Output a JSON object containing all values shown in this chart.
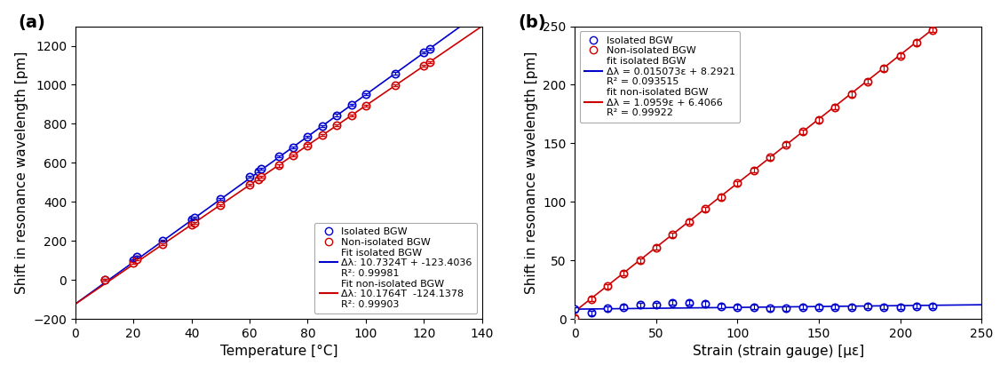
{
  "panel_a": {
    "title": "(a)",
    "xlabel": "Temperature [°C]",
    "ylabel": "Shift in resonance wavelength [pm]",
    "xlim": [
      0,
      140
    ],
    "ylim": [
      -200,
      1300
    ],
    "xticks": [
      0,
      20,
      40,
      60,
      80,
      100,
      120,
      140
    ],
    "yticks": [
      -200,
      0,
      200,
      400,
      600,
      800,
      1000,
      1200
    ],
    "isolated_x": [
      10,
      20,
      21,
      30,
      40,
      41,
      50,
      60,
      63,
      64,
      70,
      75,
      80,
      85,
      90,
      95,
      100,
      110,
      120,
      122
    ],
    "isolated_y": [
      0,
      102,
      118,
      200,
      310,
      320,
      415,
      527,
      558,
      568,
      633,
      680,
      734,
      788,
      845,
      899,
      952,
      1059,
      1166,
      1185
    ],
    "nonisolated_x": [
      10,
      20,
      21,
      30,
      40,
      41,
      50,
      60,
      63,
      64,
      70,
      75,
      80,
      85,
      90,
      95,
      100,
      110,
      120,
      122
    ],
    "nonisolated_y": [
      0,
      88,
      105,
      181,
      283,
      293,
      384,
      487,
      517,
      527,
      586,
      638,
      690,
      742,
      792,
      843,
      894,
      996,
      1097,
      1117
    ],
    "fit_isolated_slope": 10.7324,
    "fit_isolated_intercept": -123.4036,
    "fit_isolated_r2": "0.99981",
    "fit_nonisolated_slope": 10.1764,
    "fit_nonisolated_intercept": -124.1378,
    "fit_nonisolated_r2": "0.99903",
    "legend_isolated": "Isolated BGW",
    "legend_nonisolated": "Non-isolated BGW",
    "legend_fit_isolated": "Fit isolated BGW",
    "legend_fit_nonisolated": "Fit non-isolated BGW",
    "fit_label_isolated": "Δλ: 10.7324T + -123.4036",
    "fit_label_nonisolated": "Δλ: 10.1764T  -124.1378",
    "r2_label_isolated": "R²: 0.99981",
    "r2_label_nonisolated": "R²: 0.99903",
    "color_isolated": "#0000cc",
    "color_nonisolated": "#cc0000"
  },
  "panel_b": {
    "title": "(b)",
    "xlabel": "Strain (strain gauge) [με]",
    "ylabel": "Shift in resonance wavelength [pm]",
    "xlim": [
      0,
      250
    ],
    "ylim": [
      0,
      250
    ],
    "xticks": [
      0,
      50,
      100,
      150,
      200,
      250
    ],
    "yticks": [
      0,
      50,
      100,
      150,
      200,
      250
    ],
    "isolated_x": [
      0,
      10,
      20,
      30,
      40,
      50,
      60,
      70,
      80,
      90,
      100,
      110,
      120,
      130,
      140,
      150,
      160,
      170,
      180,
      190,
      200,
      210,
      220
    ],
    "isolated_y": [
      8,
      5,
      9,
      10,
      12,
      12,
      14,
      14,
      13,
      11,
      10,
      10,
      9,
      9,
      10,
      10,
      10,
      10,
      11,
      10,
      10,
      11,
      11
    ],
    "nonisolated_x": [
      0,
      10,
      20,
      30,
      40,
      50,
      60,
      70,
      80,
      90,
      100,
      110,
      120,
      130,
      140,
      150,
      160,
      170,
      180,
      190,
      200,
      210,
      220
    ],
    "nonisolated_y": [
      1,
      17,
      28,
      39,
      50,
      61,
      72,
      83,
      94,
      104,
      116,
      127,
      138,
      149,
      160,
      170,
      181,
      192,
      203,
      214,
      225,
      236,
      247
    ],
    "fit_isolated_slope": 0.015073,
    "fit_isolated_intercept": 8.2921,
    "fit_isolated_r2": "0.093515",
    "fit_nonisolated_slope": 1.0959,
    "fit_nonisolated_intercept": 6.4066,
    "fit_nonisolated_r2": "0.99922",
    "legend_isolated": "Isolated BGW",
    "legend_nonisolated": "Non-isolated BGW",
    "legend_fit_isolated": "fit isolated BGW",
    "legend_fit_nonisolated": "fit non-isolated BGW",
    "fit_label_isolated": "Δλ = 0.015073ε + 8.2921",
    "fit_label_nonisolated": "Δλ = 1.0959ε + 6.4066",
    "r2_label_isolated": "R² = 0.093515",
    "r2_label_nonisolated": "R² = 0.99922",
    "color_isolated": "#0000cc",
    "color_nonisolated": "#cc0000"
  }
}
